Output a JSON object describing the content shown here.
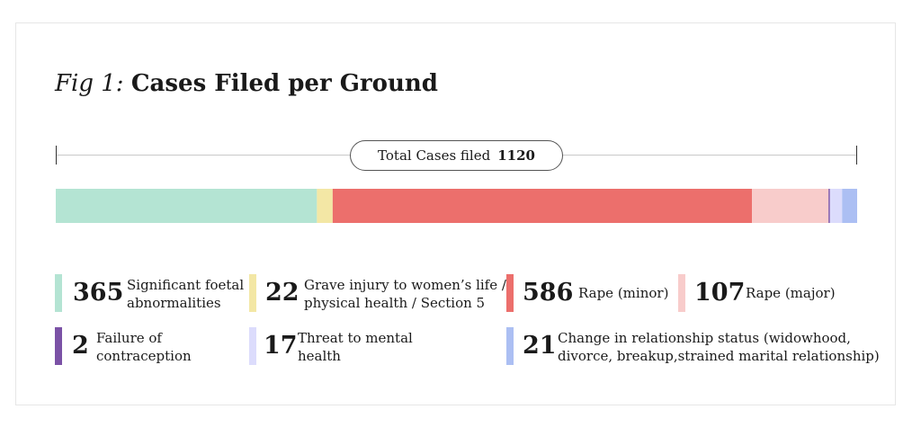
{
  "title": {
    "prefix": "Fig 1:",
    "main": "Cases Filed per Ground"
  },
  "total": {
    "label": "Total Cases filed",
    "value": "1120"
  },
  "chart_data": {
    "type": "bar",
    "orientation": "horizontal-stacked",
    "total": 1120,
    "series": [
      {
        "name": "Significant foetal abnormalities",
        "value": 365,
        "color": "#b4e4d3"
      },
      {
        "name": "Grave injury to women’s life / physical health / Section 5",
        "value": 22,
        "color": "#f3e7a5"
      },
      {
        "name": "Rape (minor)",
        "value": 586,
        "color": "#ec6f6c"
      },
      {
        "name": "Rape (major)",
        "value": 107,
        "color": "#f8cccb"
      },
      {
        "name": "Failure of contraception",
        "value": 2,
        "color": "#7b52a6"
      },
      {
        "name": "Threat to mental health",
        "value": 17,
        "color": "#dcdcfc"
      },
      {
        "name": "Change in relationship status (widowhood, divorce, breakup,strained marital relationship)",
        "value": 21,
        "color": "#acbff3"
      }
    ]
  },
  "legend": [
    {
      "value": "365",
      "line1": "Significant foetal",
      "line2": "abnormalities",
      "color": "#b4e4d3"
    },
    {
      "value": "22",
      "line1": "Grave injury to women’s life /",
      "line2": "physical health / Section 5",
      "color": "#f3e7a5"
    },
    {
      "value": "586",
      "line1": "Rape (minor)",
      "line2": "",
      "color": "#ec6f6c"
    },
    {
      "value": "107",
      "line1": "Rape (major)",
      "line2": "",
      "color": "#f8cccb"
    },
    {
      "value": "2",
      "line1": "Failure of",
      "line2": "contraception",
      "color": "#7b52a6"
    },
    {
      "value": "17",
      "line1": "Threat to mental",
      "line2": "health",
      "color": "#dcdcfc"
    },
    {
      "value": "21",
      "line1": "Change in relationship status (widowhood,",
      "line2": "divorce, breakup,strained marital relationship)",
      "color": "#acbff3"
    }
  ]
}
